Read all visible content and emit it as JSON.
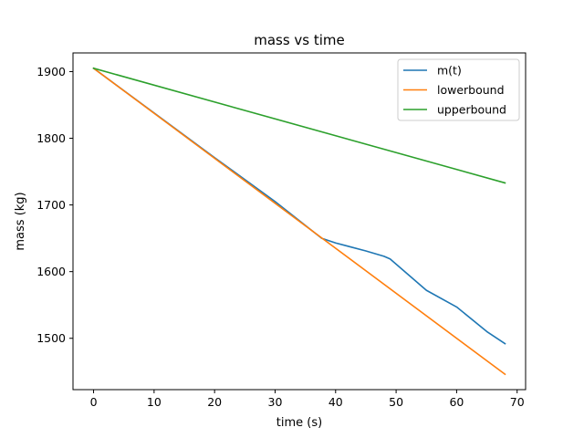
{
  "chart_data": {
    "type": "line",
    "title": "mass vs time",
    "xlabel": "time (s)",
    "ylabel": "mass (kg)",
    "xlim": [
      -3.4,
      71.4
    ],
    "ylim": [
      1423,
      1928
    ],
    "xticks": [
      0,
      10,
      20,
      30,
      40,
      50,
      60,
      70
    ],
    "yticks": [
      1500,
      1600,
      1700,
      1800,
      1900
    ],
    "grid": false,
    "legend_position": "upper right",
    "series": [
      {
        "name": "m(t)",
        "color": "#1f77b4",
        "x": [
          0,
          10,
          20,
          30,
          37.7,
          40,
          45,
          48,
          49,
          55,
          60,
          65,
          68
        ],
        "y": [
          1905,
          1838,
          1771,
          1705,
          1650,
          1643,
          1631,
          1623,
          1619,
          1572,
          1547,
          1510,
          1492
        ]
      },
      {
        "name": "lowerbound",
        "color": "#ff7f0e",
        "x": [
          0,
          68
        ],
        "y": [
          1905,
          1446
        ]
      },
      {
        "name": "upperbound",
        "color": "#2ca02c",
        "x": [
          0,
          68
        ],
        "y": [
          1905,
          1733
        ]
      }
    ]
  }
}
